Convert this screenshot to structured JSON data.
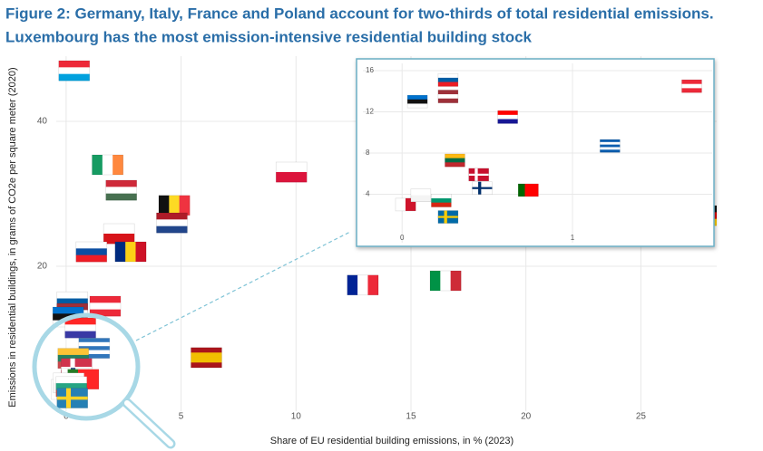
{
  "chart_data": [
    {
      "type": "scatter",
      "title": "Figure 2: Germany, Italy, France and Poland account for two-thirds of total residential emissions.",
      "subtitle": "Luxembourg has the most emission-intensive residential building stock",
      "x_label": "Share of EU residential building emissions, in % (2023)",
      "y_label": "Emissions in residential buildings, in grams of CO2e per square meter (2020)",
      "xlim": [
        -0.43,
        28.3
      ],
      "ylim": [
        0,
        49
      ],
      "xticks": [
        0,
        5,
        10,
        15,
        20,
        25
      ],
      "yticks": [
        20,
        40
      ],
      "grid": true,
      "x": [
        0.35,
        1.8,
        2.4,
        4.7,
        4.6,
        9.8,
        2.3,
        1.1,
        2.8,
        1.7,
        0.27,
        0.27,
        0.09,
        0.62,
        1.22,
        0.31,
        0.45,
        0.47,
        0.74,
        0.02,
        0.11,
        0.23,
        0.27,
        6.1,
        12.9,
        16.5,
        28.3
      ],
      "values": [
        47,
        34,
        30.5,
        28.4,
        26,
        33,
        24.5,
        22,
        22,
        14.5,
        15.1,
        13.5,
        13,
        11.5,
        8.7,
        7.3,
        5.9,
        4.6,
        4.4,
        3.0,
        3.9,
        3.4,
        1.8,
        7.4,
        17.4,
        18,
        27
      ],
      "flags": [
        {
          "kind": "h",
          "colors": [
            "#ed2939",
            "#ffffff",
            "#00a1de"
          ]
        },
        {
          "kind": "v",
          "colors": [
            "#169b62",
            "#ffffff",
            "#ff883e"
          ]
        },
        {
          "kind": "h",
          "colors": [
            "#ce2939",
            "#ffffff",
            "#477050"
          ]
        },
        {
          "kind": "v",
          "colors": [
            "#111111",
            "#fdda24",
            "#ef3340"
          ]
        },
        {
          "kind": "h",
          "colors": [
            "#ae1c28",
            "#ffffff",
            "#21468b"
          ]
        },
        {
          "kind": "h",
          "colors": [
            "#ffffff",
            "#dc143c"
          ]
        },
        {
          "kind": "h",
          "colors": [
            "#ffffff",
            "#d7141a"
          ]
        },
        {
          "kind": "h",
          "colors": [
            "#ffffff",
            "#0b4ea2",
            "#ee1c25"
          ]
        },
        {
          "kind": "v",
          "colors": [
            "#002b7f",
            "#fcd116",
            "#ce1126"
          ]
        },
        {
          "kind": "h",
          "colors": [
            "#ed2939",
            "#ffffff",
            "#ed2939"
          ]
        },
        {
          "kind": "h",
          "colors": [
            "#ffffff",
            "#005da4",
            "#ed1c24"
          ]
        },
        {
          "kind": "h",
          "colors": [
            "#9e3039",
            "#ffffff",
            "#9e3039"
          ]
        },
        {
          "kind": "h",
          "colors": [
            "#0072ce",
            "#111111",
            "#ffffff"
          ]
        },
        {
          "kind": "h",
          "colors": [
            "#ff0000",
            "#ffffff",
            "#171796"
          ]
        },
        {
          "kind": "h",
          "colors": [
            "#0d5eaf",
            "#ffffff",
            "#0d5eaf",
            "#ffffff",
            "#0d5eaf"
          ]
        },
        {
          "kind": "h",
          "colors": [
            "#fdb913",
            "#006a44",
            "#c1272d"
          ]
        },
        {
          "kind": "cross",
          "colors": [
            "#c8102e",
            "#ffffff"
          ]
        },
        {
          "kind": "cross",
          "colors": [
            "#ffffff",
            "#002f6c"
          ]
        },
        {
          "kind": "v",
          "colors": [
            "#006600",
            "#ff0000",
            "#ff0000"
          ]
        },
        {
          "kind": "v",
          "colors": [
            "#ffffff",
            "#cf142b"
          ]
        },
        {
          "kind": "h",
          "colors": [
            "#ffffff",
            "#f4f4f4"
          ]
        },
        {
          "kind": "h",
          "colors": [
            "#ffffff",
            "#00966e",
            "#d62612"
          ]
        },
        {
          "kind": "cross",
          "colors": [
            "#006aa7",
            "#fecc02"
          ]
        },
        {
          "kind": "h",
          "colors": [
            "#aa151b",
            "#f1bf00",
            "#f1bf00",
            "#aa151b"
          ]
        },
        {
          "kind": "v",
          "colors": [
            "#002395",
            "#ffffff",
            "#ed2939"
          ]
        },
        {
          "kind": "v",
          "colors": [
            "#009246",
            "#ffffff",
            "#ce2b37"
          ]
        },
        {
          "kind": "h",
          "colors": [
            "#111111",
            "#dd0000",
            "#ffce00"
          ]
        }
      ]
    },
    {
      "type": "scatter",
      "xlim": [
        -0.23,
        1.82
      ],
      "ylim": [
        -0.7,
        16.7
      ],
      "xticks": [
        0,
        1
      ],
      "yticks": [
        4,
        8,
        12,
        16
      ],
      "grid": true,
      "x": [
        1.7,
        0.27,
        0.27,
        0.09,
        0.62,
        1.22,
        0.31,
        0.45,
        0.47,
        0.74,
        0.02,
        0.11,
        0.23,
        0.27
      ],
      "values": [
        14.5,
        15.1,
        13.5,
        13,
        11.5,
        8.7,
        7.3,
        5.9,
        4.6,
        4.4,
        3.0,
        3.9,
        3.4,
        1.8
      ],
      "flags": [
        {
          "kind": "h",
          "colors": [
            "#ed2939",
            "#ffffff",
            "#ed2939"
          ]
        },
        {
          "kind": "h",
          "colors": [
            "#ffffff",
            "#005da4",
            "#ed1c24"
          ]
        },
        {
          "kind": "h",
          "colors": [
            "#9e3039",
            "#ffffff",
            "#9e3039"
          ]
        },
        {
          "kind": "h",
          "colors": [
            "#0072ce",
            "#111111",
            "#ffffff"
          ]
        },
        {
          "kind": "h",
          "colors": [
            "#ff0000",
            "#ffffff",
            "#171796"
          ]
        },
        {
          "kind": "h",
          "colors": [
            "#0d5eaf",
            "#ffffff",
            "#0d5eaf",
            "#ffffff",
            "#0d5eaf"
          ]
        },
        {
          "kind": "h",
          "colors": [
            "#fdb913",
            "#006a44",
            "#c1272d"
          ]
        },
        {
          "kind": "cross",
          "colors": [
            "#c8102e",
            "#ffffff"
          ]
        },
        {
          "kind": "cross",
          "colors": [
            "#ffffff",
            "#002f6c"
          ]
        },
        {
          "kind": "v",
          "colors": [
            "#006600",
            "#ff0000",
            "#ff0000"
          ]
        },
        {
          "kind": "v",
          "colors": [
            "#ffffff",
            "#cf142b"
          ]
        },
        {
          "kind": "h",
          "colors": [
            "#ffffff",
            "#f4f4f4"
          ]
        },
        {
          "kind": "h",
          "colors": [
            "#ffffff",
            "#00966e",
            "#d62612"
          ]
        },
        {
          "kind": "cross",
          "colors": [
            "#006aa7",
            "#fecc02"
          ]
        }
      ]
    }
  ]
}
